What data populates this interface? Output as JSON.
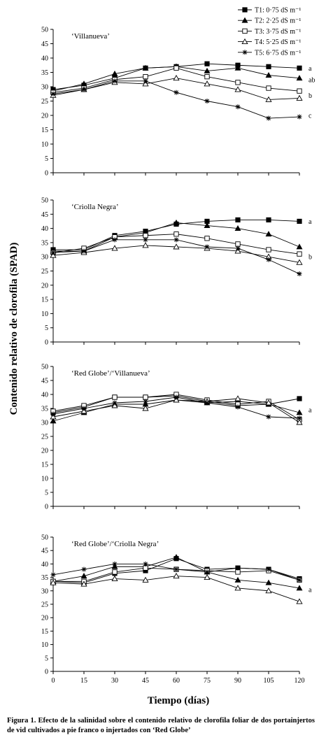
{
  "figure": {
    "y_axis_label": "Contenido relativo de clorofila (SPAD)",
    "x_axis_label": "Tiempo (días)",
    "caption": "Figura 1. Efecto de la salinidad sobre el contenido relativo de clorofila foliar de dos portainjertos de vid cultivados a pie franco o injertados con ‘Red Globe’"
  },
  "legend": [
    {
      "key": "T1",
      "label": "T1: 0·75 dS m⁻¹",
      "marker": "filled-square"
    },
    {
      "key": "T2",
      "label": "T2: 2·25 dS m⁻¹",
      "marker": "filled-triangle"
    },
    {
      "key": "T3",
      "label": "T3: 3·75 dS m⁻¹",
      "marker": "open-square"
    },
    {
      "key": "T4",
      "label": "T4: 5·25 dS m⁻¹",
      "marker": "open-triangle"
    },
    {
      "key": "T5",
      "label": "T5: 6·75 dS m⁻¹",
      "marker": "star"
    }
  ],
  "chart_data": [
    {
      "type": "line",
      "title": "‘Villanueva’",
      "x": [
        0,
        15,
        30,
        45,
        60,
        75,
        90,
        105,
        120
      ],
      "ylim": [
        0,
        50
      ],
      "yticks": [
        0,
        5,
        10,
        15,
        20,
        25,
        30,
        35,
        40,
        45,
        50
      ],
      "series": [
        {
          "name": "T1",
          "values": [
            29,
            30.5,
            33,
            36.5,
            37,
            38,
            37.5,
            37,
            36.5
          ]
        },
        {
          "name": "T2",
          "values": [
            28.5,
            31,
            34.5,
            36.5,
            37,
            35.5,
            36.5,
            34,
            33
          ]
        },
        {
          "name": "T3",
          "values": [
            28,
            29.5,
            32.5,
            33.5,
            36.5,
            33.5,
            31.5,
            29.5,
            28.5
          ]
        },
        {
          "name": "T4",
          "values": [
            27,
            29,
            31.5,
            31,
            33,
            31,
            29,
            25.5,
            26
          ]
        },
        {
          "name": "T5",
          "values": [
            27.5,
            29,
            32,
            32,
            28,
            25,
            23,
            19,
            19.5
          ]
        }
      ],
      "letters": [
        {
          "text": "a",
          "y": 36.5
        },
        {
          "text": "ab",
          "y": 32.5
        },
        {
          "text": "b",
          "y": 27
        },
        {
          "text": "c",
          "y": 20
        }
      ]
    },
    {
      "type": "line",
      "title": "‘Criolla Negra’",
      "x": [
        0,
        15,
        30,
        45,
        60,
        75,
        90,
        105,
        120
      ],
      "ylim": [
        0,
        50
      ],
      "yticks": [
        0,
        5,
        10,
        15,
        20,
        25,
        30,
        35,
        40,
        45,
        50
      ],
      "series": [
        {
          "name": "T1",
          "values": [
            32.5,
            32.5,
            37.5,
            39,
            41.5,
            42.5,
            43,
            43,
            42.5
          ]
        },
        {
          "name": "T2",
          "values": [
            32,
            32,
            37,
            38.5,
            42,
            41,
            40,
            38,
            33.5
          ]
        },
        {
          "name": "T3",
          "values": [
            31.5,
            33,
            37,
            37.5,
            38,
            36.5,
            34.5,
            32.5,
            31
          ]
        },
        {
          "name": "T4",
          "values": [
            30.5,
            31.5,
            33,
            34,
            33.5,
            33,
            32,
            30,
            28
          ]
        },
        {
          "name": "T5",
          "values": [
            31.5,
            32,
            36,
            36,
            36,
            33.5,
            33,
            29,
            24
          ]
        }
      ],
      "letters": [
        {
          "text": "a",
          "y": 42.5
        },
        {
          "text": "b",
          "y": 30
        }
      ]
    },
    {
      "type": "line",
      "title": "‘Red Globe’/‘Villanueva’",
      "x": [
        0,
        15,
        30,
        45,
        60,
        75,
        90,
        105,
        120
      ],
      "ylim": [
        0,
        50
      ],
      "yticks": [
        0,
        5,
        10,
        15,
        20,
        25,
        30,
        35,
        40,
        45,
        50
      ],
      "series": [
        {
          "name": "T1",
          "values": [
            33.5,
            35.5,
            39,
            39,
            39.5,
            37.5,
            36,
            36.5,
            38.5
          ]
        },
        {
          "name": "T2",
          "values": [
            30.5,
            33.5,
            36.5,
            36.5,
            38,
            37,
            37.5,
            36.5,
            33.5
          ]
        },
        {
          "name": "T3",
          "values": [
            34,
            36,
            39,
            39,
            40,
            38,
            36.5,
            37.5,
            31
          ]
        },
        {
          "name": "T4",
          "values": [
            32,
            34,
            36,
            35,
            38,
            37.5,
            38.5,
            37,
            30
          ]
        },
        {
          "name": "T5",
          "values": [
            33,
            35,
            37,
            37.5,
            39,
            37,
            35.5,
            32,
            31.5
          ]
        }
      ],
      "letters": [
        {
          "text": "a",
          "y": 34.5
        }
      ]
    },
    {
      "type": "line",
      "title": "‘Red Globe’/‘Criolla Negra’",
      "x": [
        0,
        15,
        30,
        45,
        60,
        75,
        90,
        105,
        120
      ],
      "ylim": [
        0,
        50
      ],
      "yticks": [
        0,
        5,
        10,
        15,
        20,
        25,
        30,
        35,
        40,
        45,
        50
      ],
      "series": [
        {
          "name": "T1",
          "values": [
            33.5,
            33,
            36.5,
            37.5,
            42,
            38,
            38.5,
            38,
            34.5
          ]
        },
        {
          "name": "T2",
          "values": [
            33.5,
            35.5,
            39,
            39,
            42.5,
            37,
            34,
            33,
            31
          ]
        },
        {
          "name": "T3",
          "values": [
            33.5,
            33.5,
            37,
            38.5,
            38,
            37.5,
            37,
            37.5,
            34
          ]
        },
        {
          "name": "T4",
          "values": [
            33,
            32.5,
            34.5,
            34,
            35.5,
            35,
            31,
            30,
            26
          ]
        },
        {
          "name": "T5",
          "values": [
            36,
            38,
            40,
            40,
            38,
            37,
            38.5,
            38,
            34
          ]
        }
      ],
      "letters": [
        {
          "text": "a",
          "y": 30.5
        }
      ]
    }
  ]
}
